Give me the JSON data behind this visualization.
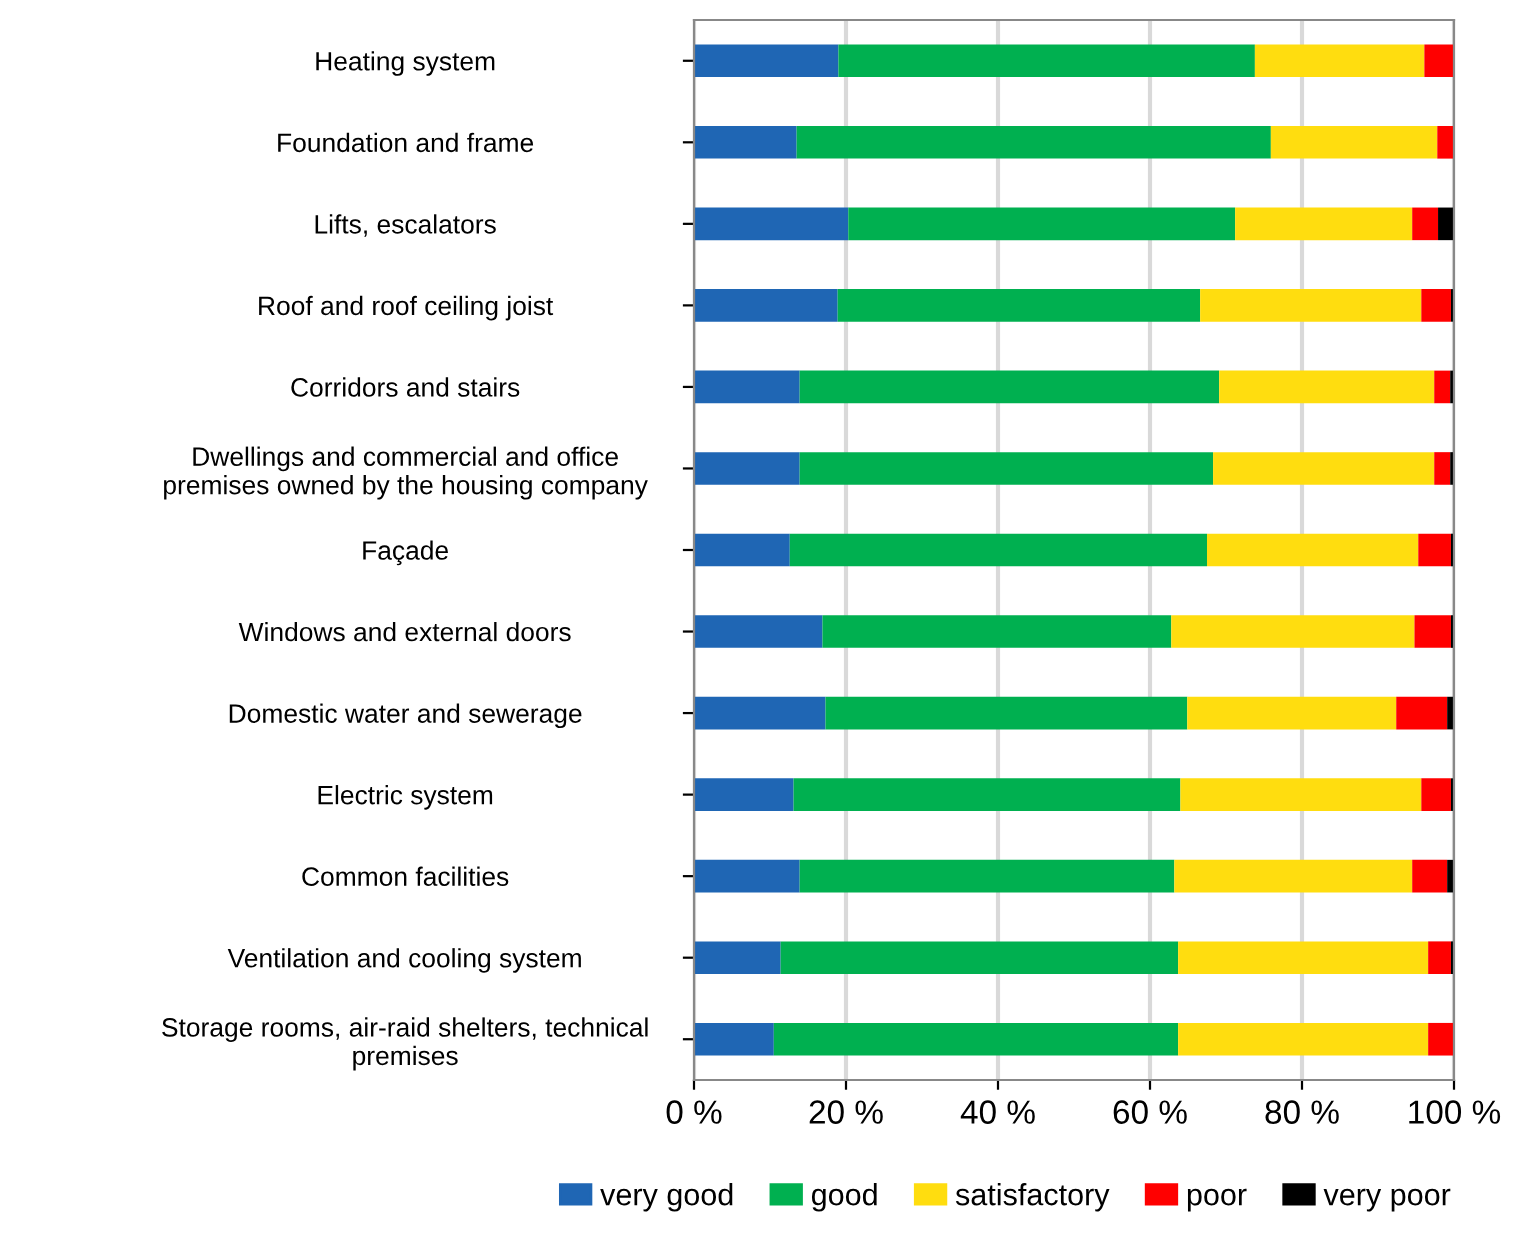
{
  "chart_data": {
    "type": "bar",
    "orientation": "horizontal",
    "stacked": true,
    "categories": [
      "Heating system",
      "Foundation and frame",
      "Lifts, escalators",
      "Roof and roof ceiling joist",
      "Corridors and stairs",
      "Dwellings and commercial and office\npremises owned by the housing company",
      "Façade",
      "Windows and external doors",
      "Domestic water and sewerage",
      "Electric system",
      "Common facilities",
      "Ventilation and cooling system",
      "Storage rooms, air-raid shelters, technical\npremises"
    ],
    "series": [
      {
        "name": "very good",
        "color": "#1f66b4",
        "values": [
          19,
          13.5,
          20.3,
          18.9,
          13.9,
          13.9,
          12.6,
          16.9,
          17.3,
          13.1,
          13.9,
          11.4,
          10.5
        ]
      },
      {
        "name": "good",
        "color": "#00b050",
        "values": [
          54.8,
          62.4,
          50.9,
          47.7,
          55.2,
          54.4,
          54.9,
          45.9,
          47.6,
          50.9,
          49.3,
          52.3,
          53.2
        ]
      },
      {
        "name": "satisfactory",
        "color": "#ffdd0f",
        "values": [
          22.3,
          21.9,
          23.3,
          29.1,
          28.3,
          29.1,
          27.8,
          32,
          27.5,
          31.7,
          31.3,
          32.9,
          32.9
        ]
      },
      {
        "name": "poor",
        "color": "#ff0000",
        "values": [
          3.9,
          2.2,
          3.4,
          3.9,
          2.1,
          2.1,
          4.3,
          4.8,
          6.7,
          3.9,
          4.6,
          3,
          3.4
        ]
      },
      {
        "name": "very poor",
        "color": "#000000",
        "values": [
          0,
          0,
          2.1,
          0.4,
          0.5,
          0.5,
          0.4,
          0.4,
          0.9,
          0.4,
          0.9,
          0.4,
          0
        ]
      }
    ],
    "xlim": [
      0,
      100
    ],
    "xticks": [
      {
        "value": 0,
        "label": "0 %"
      },
      {
        "value": 20,
        "label": "20 %"
      },
      {
        "value": 40,
        "label": "40 %"
      },
      {
        "value": 60,
        "label": "60 %"
      },
      {
        "value": 80,
        "label": "80 %"
      },
      {
        "value": 100,
        "label": "100 %"
      }
    ],
    "grid": "x",
    "legend": "bottom"
  }
}
